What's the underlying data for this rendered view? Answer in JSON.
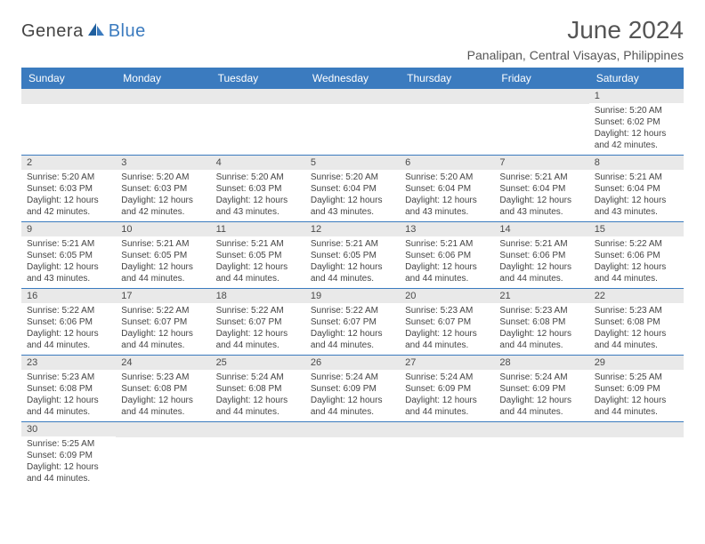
{
  "brand": {
    "part1": "Genera",
    "part2": "Blue"
  },
  "title": "June 2024",
  "location": "Panalipan, Central Visayas, Philippines",
  "colors": {
    "header_bg": "#3b7bbf",
    "header_fg": "#ffffff",
    "daynum_bg": "#e9e9e9",
    "row_border": "#3b7bbf",
    "text": "#444444",
    "brand_gray": "#444444",
    "brand_blue": "#3b7bbf",
    "page_bg": "#ffffff"
  },
  "day_headers": [
    "Sunday",
    "Monday",
    "Tuesday",
    "Wednesday",
    "Thursday",
    "Friday",
    "Saturday"
  ],
  "weeks": [
    [
      {
        "blank": true
      },
      {
        "blank": true
      },
      {
        "blank": true
      },
      {
        "blank": true
      },
      {
        "blank": true
      },
      {
        "blank": true
      },
      {
        "n": "1",
        "sr": "5:20 AM",
        "ss": "6:02 PM",
        "dl": "12 hours and 42 minutes."
      }
    ],
    [
      {
        "n": "2",
        "sr": "5:20 AM",
        "ss": "6:03 PM",
        "dl": "12 hours and 42 minutes."
      },
      {
        "n": "3",
        "sr": "5:20 AM",
        "ss": "6:03 PM",
        "dl": "12 hours and 42 minutes."
      },
      {
        "n": "4",
        "sr": "5:20 AM",
        "ss": "6:03 PM",
        "dl": "12 hours and 43 minutes."
      },
      {
        "n": "5",
        "sr": "5:20 AM",
        "ss": "6:04 PM",
        "dl": "12 hours and 43 minutes."
      },
      {
        "n": "6",
        "sr": "5:20 AM",
        "ss": "6:04 PM",
        "dl": "12 hours and 43 minutes."
      },
      {
        "n": "7",
        "sr": "5:21 AM",
        "ss": "6:04 PM",
        "dl": "12 hours and 43 minutes."
      },
      {
        "n": "8",
        "sr": "5:21 AM",
        "ss": "6:04 PM",
        "dl": "12 hours and 43 minutes."
      }
    ],
    [
      {
        "n": "9",
        "sr": "5:21 AM",
        "ss": "6:05 PM",
        "dl": "12 hours and 43 minutes."
      },
      {
        "n": "10",
        "sr": "5:21 AM",
        "ss": "6:05 PM",
        "dl": "12 hours and 44 minutes."
      },
      {
        "n": "11",
        "sr": "5:21 AM",
        "ss": "6:05 PM",
        "dl": "12 hours and 44 minutes."
      },
      {
        "n": "12",
        "sr": "5:21 AM",
        "ss": "6:05 PM",
        "dl": "12 hours and 44 minutes."
      },
      {
        "n": "13",
        "sr": "5:21 AM",
        "ss": "6:06 PM",
        "dl": "12 hours and 44 minutes."
      },
      {
        "n": "14",
        "sr": "5:21 AM",
        "ss": "6:06 PM",
        "dl": "12 hours and 44 minutes."
      },
      {
        "n": "15",
        "sr": "5:22 AM",
        "ss": "6:06 PM",
        "dl": "12 hours and 44 minutes."
      }
    ],
    [
      {
        "n": "16",
        "sr": "5:22 AM",
        "ss": "6:06 PM",
        "dl": "12 hours and 44 minutes."
      },
      {
        "n": "17",
        "sr": "5:22 AM",
        "ss": "6:07 PM",
        "dl": "12 hours and 44 minutes."
      },
      {
        "n": "18",
        "sr": "5:22 AM",
        "ss": "6:07 PM",
        "dl": "12 hours and 44 minutes."
      },
      {
        "n": "19",
        "sr": "5:22 AM",
        "ss": "6:07 PM",
        "dl": "12 hours and 44 minutes."
      },
      {
        "n": "20",
        "sr": "5:23 AM",
        "ss": "6:07 PM",
        "dl": "12 hours and 44 minutes."
      },
      {
        "n": "21",
        "sr": "5:23 AM",
        "ss": "6:08 PM",
        "dl": "12 hours and 44 minutes."
      },
      {
        "n": "22",
        "sr": "5:23 AM",
        "ss": "6:08 PM",
        "dl": "12 hours and 44 minutes."
      }
    ],
    [
      {
        "n": "23",
        "sr": "5:23 AM",
        "ss": "6:08 PM",
        "dl": "12 hours and 44 minutes."
      },
      {
        "n": "24",
        "sr": "5:23 AM",
        "ss": "6:08 PM",
        "dl": "12 hours and 44 minutes."
      },
      {
        "n": "25",
        "sr": "5:24 AM",
        "ss": "6:08 PM",
        "dl": "12 hours and 44 minutes."
      },
      {
        "n": "26",
        "sr": "5:24 AM",
        "ss": "6:09 PM",
        "dl": "12 hours and 44 minutes."
      },
      {
        "n": "27",
        "sr": "5:24 AM",
        "ss": "6:09 PM",
        "dl": "12 hours and 44 minutes."
      },
      {
        "n": "28",
        "sr": "5:24 AM",
        "ss": "6:09 PM",
        "dl": "12 hours and 44 minutes."
      },
      {
        "n": "29",
        "sr": "5:25 AM",
        "ss": "6:09 PM",
        "dl": "12 hours and 44 minutes."
      }
    ],
    [
      {
        "n": "30",
        "sr": "5:25 AM",
        "ss": "6:09 PM",
        "dl": "12 hours and 44 minutes."
      },
      {
        "blank": true
      },
      {
        "blank": true
      },
      {
        "blank": true
      },
      {
        "blank": true
      },
      {
        "blank": true
      },
      {
        "blank": true
      }
    ]
  ],
  "labels": {
    "sunrise": "Sunrise: ",
    "sunset": "Sunset: ",
    "daylight": "Daylight: "
  }
}
